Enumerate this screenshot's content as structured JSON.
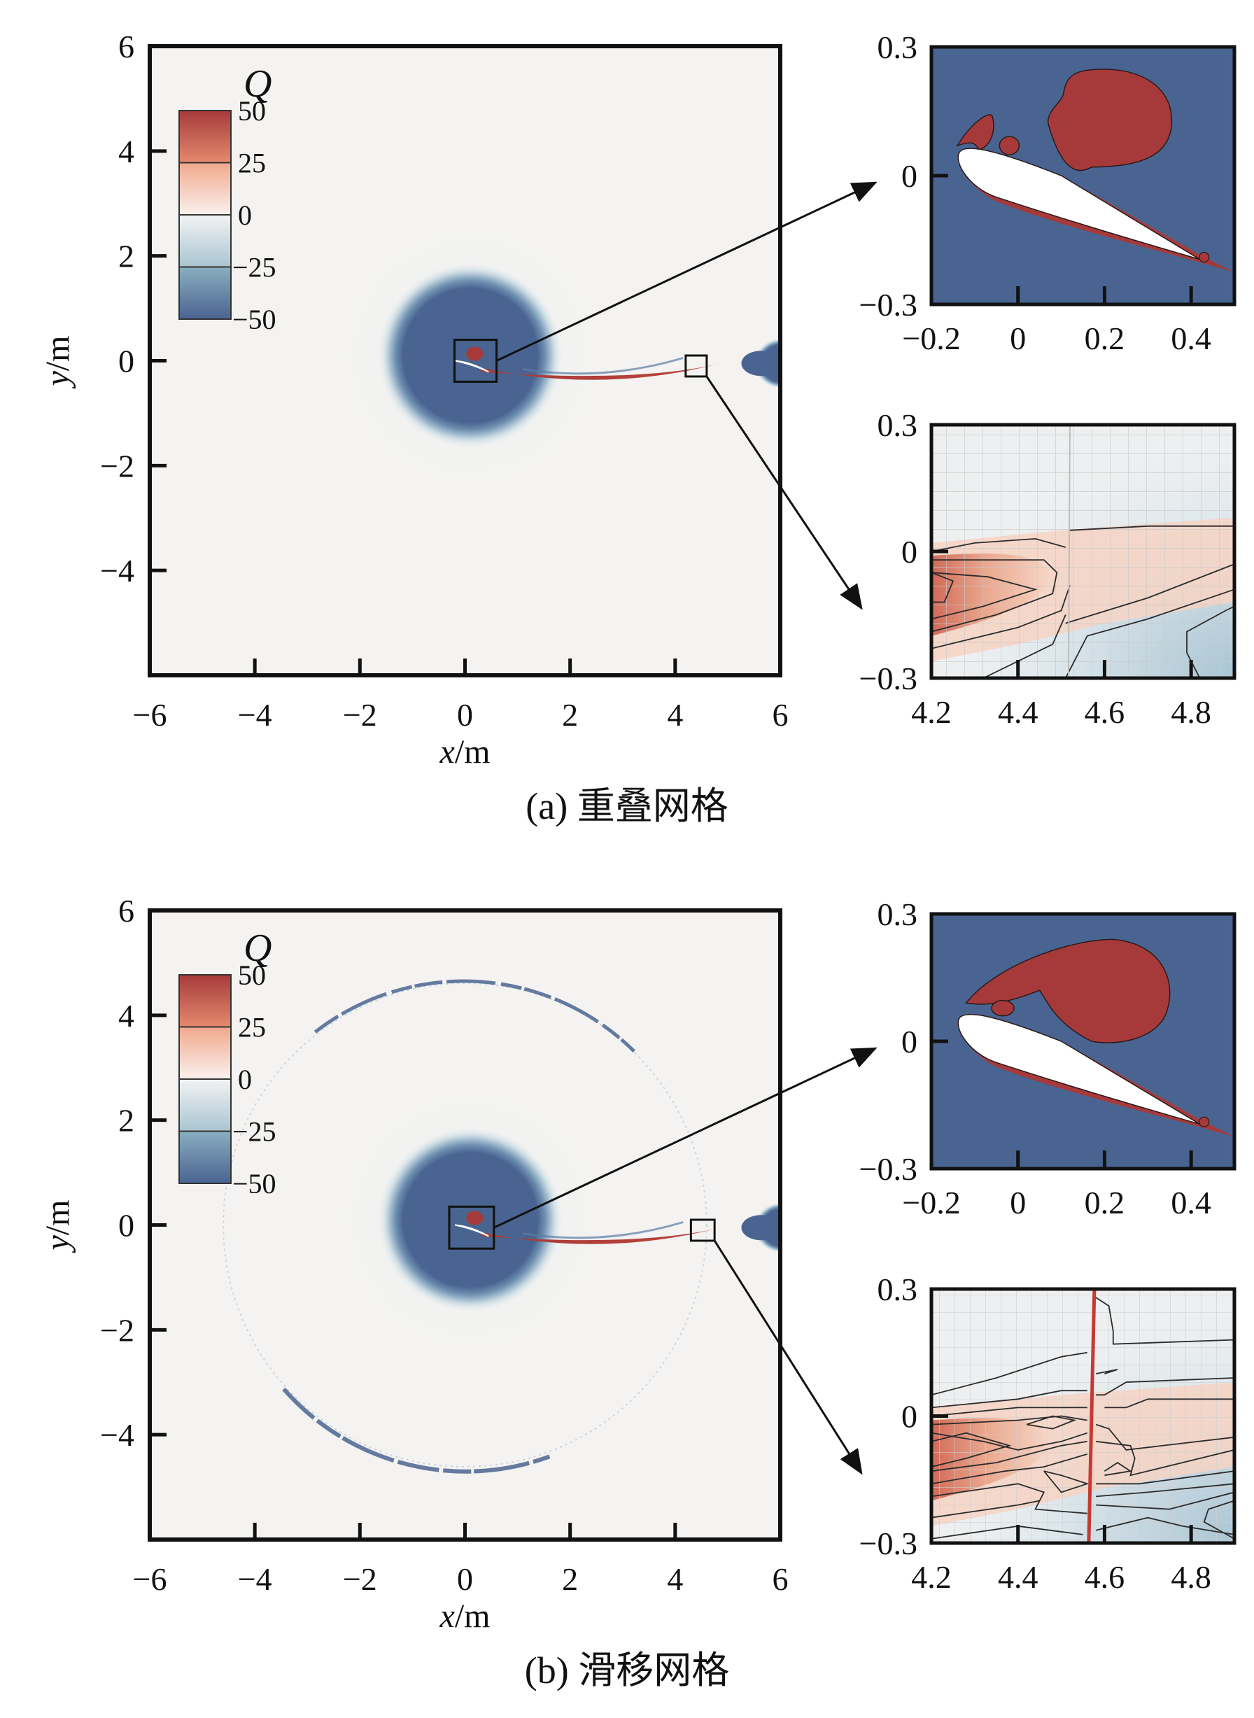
{
  "figure": {
    "panels": [
      {
        "id": "a",
        "caption": "(a) 重叠网格",
        "main": {
          "xlabel_var": "x",
          "xlabel_unit": "/m",
          "ylabel_var": "y",
          "ylabel_unit": "/m",
          "xlim": [
            -6,
            6
          ],
          "ylim": [
            -6,
            6
          ],
          "xticks": [
            -6,
            -4,
            -2,
            0,
            2,
            4,
            6
          ],
          "yticks": [
            -4,
            -2,
            0,
            2,
            4,
            6
          ],
          "xtick_labels": [
            "−6",
            "−4",
            "−2",
            "0",
            "2",
            "4",
            "6"
          ],
          "ytick_labels": [
            "−4",
            "−2",
            "0",
            "2",
            "4",
            "6"
          ],
          "sliding_ring": false,
          "zoom_boxes": [
            {
              "name": "airfoil-box",
              "x": [
                -0.2,
                0.6
              ],
              "y": [
                -0.4,
                0.4
              ]
            },
            {
              "name": "wake-box",
              "x": [
                4.2,
                4.6
              ],
              "y": [
                -0.3,
                0.1
              ]
            }
          ]
        },
        "inset_airfoil": {
          "xlim": [
            -0.2,
            0.5
          ],
          "ylim": [
            -0.3,
            0.3
          ],
          "xticks": [
            -0.2,
            0,
            0.2,
            0.4
          ],
          "xtick_labels": [
            "−0.2",
            "0",
            "0.2",
            "0.4"
          ],
          "yticks": [
            -0.3,
            0,
            0.3
          ],
          "ytick_labels": [
            "−0.3",
            "0",
            "0.3"
          ]
        },
        "inset_wake": {
          "xlim": [
            4.2,
            4.9
          ],
          "ylim": [
            -0.3,
            0.3
          ],
          "xticks": [
            4.2,
            4.4,
            4.6,
            4.8
          ],
          "xtick_labels": [
            "4.2",
            "4.4",
            "4.6",
            "4.8"
          ],
          "yticks": [
            -0.3,
            0,
            0.3
          ],
          "ytick_labels": [
            "−0.3",
            "0",
            "0.3"
          ],
          "interface_line_x": null,
          "interface_mesh_break_x": 4.52
        }
      },
      {
        "id": "b",
        "caption": "(b) 滑移网格",
        "main": {
          "xlabel_var": "x",
          "xlabel_unit": "/m",
          "ylabel_var": "y",
          "ylabel_unit": "/m",
          "xlim": [
            -6,
            6
          ],
          "ylim": [
            -6,
            6
          ],
          "xticks": [
            -6,
            -4,
            -2,
            0,
            2,
            4,
            6
          ],
          "yticks": [
            -4,
            -2,
            0,
            2,
            4,
            6
          ],
          "xtick_labels": [
            "−6",
            "−4",
            "−2",
            "0",
            "2",
            "4",
            "6"
          ],
          "ytick_labels": [
            "−4",
            "−2",
            "0",
            "2",
            "4",
            "6"
          ],
          "sliding_ring": true,
          "sliding_ring_radius": 4.6,
          "zoom_boxes": [
            {
              "name": "airfoil-box",
              "x": [
                -0.3,
                0.55
              ],
              "y": [
                -0.45,
                0.35
              ]
            },
            {
              "name": "wake-box",
              "x": [
                4.3,
                4.75
              ],
              "y": [
                -0.3,
                0.1
              ]
            }
          ]
        },
        "inset_airfoil": {
          "xlim": [
            -0.2,
            0.5
          ],
          "ylim": [
            -0.3,
            0.3
          ],
          "xticks": [
            -0.2,
            0,
            0.2,
            0.4
          ],
          "xtick_labels": [
            "−0.2",
            "0",
            "0.2",
            "0.4"
          ],
          "yticks": [
            -0.3,
            0,
            0.3
          ],
          "ytick_labels": [
            "−0.3",
            "0",
            "0.3"
          ]
        },
        "inset_wake": {
          "xlim": [
            4.2,
            4.9
          ],
          "ylim": [
            -0.3,
            0.3
          ],
          "xticks": [
            4.2,
            4.4,
            4.6,
            4.8
          ],
          "xtick_labels": [
            "4.2",
            "4.4",
            "4.6",
            "4.8"
          ],
          "yticks": [
            -0.3,
            0,
            0.3
          ],
          "ytick_labels": [
            "−0.3",
            "0",
            "0.3"
          ],
          "interface_line_x": 4.57,
          "interface_mesh_break_x": null
        }
      }
    ]
  },
  "chart_data": {
    "type": "heatmap",
    "title": "",
    "variable": "Q",
    "colorbar": {
      "title": "Q",
      "range": [
        -50,
        50
      ],
      "ticks": [
        50,
        25,
        0,
        -25,
        -50
      ],
      "tick_labels": [
        "50",
        "25",
        "0",
        "−25",
        "−50"
      ],
      "colors": {
        "max": "#a83a3a",
        "high": "#e48a6e",
        "zero": "#f4f4f2",
        "low": "#9dbccb",
        "min": "#4a6491"
      }
    },
    "xlabel": "x/m",
    "ylabel": "y/m",
    "xlim": [
      -6,
      6
    ],
    "ylim": [
      -6,
      6
    ],
    "features": [
      {
        "kind": "rotating-zone-core",
        "center": [
          0.1,
          0.1
        ],
        "radius": 1.25,
        "Q": -50
      },
      {
        "kind": "wake-vortex-sheet",
        "from_x": 0.3,
        "to_x": 4.6,
        "y_approx": -0.2,
        "Q": 50
      },
      {
        "kind": "downstream-vortex",
        "center": [
          5.9,
          -0.05
        ],
        "radius": 0.45,
        "Q": -50
      }
    ],
    "panels": [
      "(a) 重叠网格",
      "(b) 滑移网格"
    ],
    "grid": false,
    "legend": "colorbar top-left"
  }
}
